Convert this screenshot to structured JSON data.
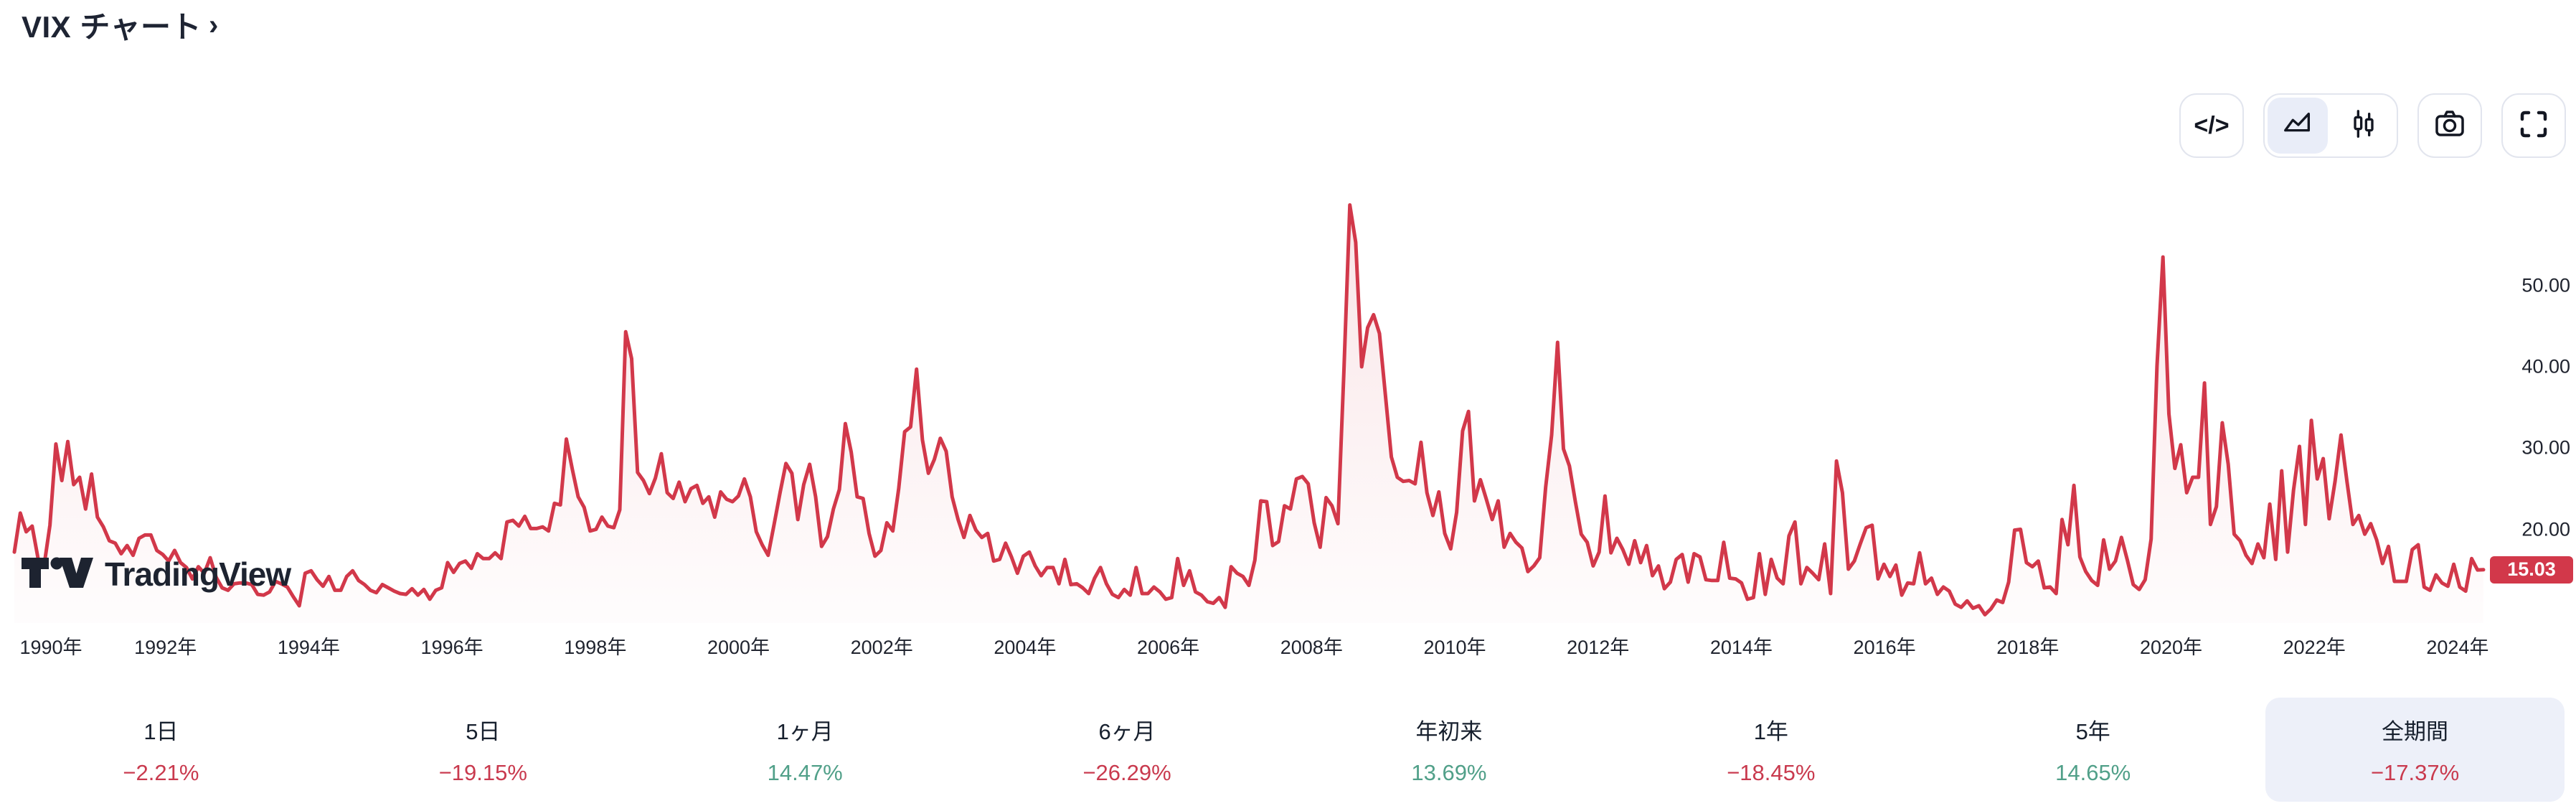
{
  "page": {
    "background": "#ffffff"
  },
  "header": {
    "title": "VIX チャート",
    "chevron": "›"
  },
  "toolbar": {
    "code_button": {
      "glyph": "</>"
    },
    "chart_type": {
      "options": [
        {
          "name": "area",
          "selected": true
        },
        {
          "name": "candles",
          "selected": false
        }
      ]
    },
    "screenshot_button": {
      "icon": "camera-icon"
    },
    "fullscreen_button": {
      "icon": "fullscreen-icon"
    }
  },
  "watermark": {
    "text": "TradingView"
  },
  "chart_data": {
    "type": "area",
    "title": "VIX",
    "frequency": "monthly",
    "x_start": {
      "year": 1990,
      "month": 1
    },
    "x_end": {
      "year": 2024,
      "month": 9
    },
    "line_color": "#d2384a",
    "fill_color_top": "rgba(210,56,74,0.16)",
    "fill_color_bottom": "rgba(210,56,74,0)",
    "ylim": [
      8,
      78
    ],
    "grid": false,
    "legend": false,
    "values": [
      17.2,
      22.0,
      19.7,
      20.4,
      16.4,
      15.5,
      20.5,
      30.5,
      26.0,
      30.8,
      25.5,
      26.4,
      22.5,
      26.8,
      21.5,
      20.3,
      18.6,
      18.3,
      17.0,
      18.0,
      16.8,
      18.9,
      19.3,
      19.3,
      17.4,
      16.9,
      16.1,
      17.4,
      15.9,
      15.3,
      13.9,
      15.4,
      14.6,
      16.5,
      14.1,
      12.8,
      12.5,
      13.3,
      13.4,
      13.4,
      13.2,
      12.0,
      11.9,
      12.3,
      13.6,
      13.3,
      12.9,
      11.7,
      10.6,
      14.6,
      14.9,
      13.8,
      13.0,
      14.2,
      12.5,
      12.5,
      14.2,
      14.9,
      13.7,
      13.2,
      12.5,
      12.2,
      13.2,
      12.8,
      12.4,
      12.1,
      12.0,
      12.7,
      11.9,
      12.6,
      11.4,
      12.5,
      12.8,
      15.9,
      14.7,
      15.8,
      16.1,
      15.2,
      17.0,
      16.4,
      16.4,
      17.1,
      16.4,
      20.9,
      21.1,
      20.4,
      21.6,
      20.1,
      20.1,
      20.3,
      19.8,
      23.2,
      23.0,
      31.1,
      27.4,
      24.0,
      22.7,
      19.8,
      20.0,
      21.5,
      20.4,
      20.2,
      22.4,
      44.3,
      41.0,
      27.0,
      26.0,
      24.4,
      26.3,
      29.3,
      24.5,
      23.8,
      25.8,
      23.4,
      25.0,
      25.4,
      23.2,
      24.0,
      21.5,
      24.6,
      23.7,
      23.4,
      24.1,
      26.2,
      24.0,
      19.7,
      18.1,
      16.8,
      20.6,
      24.5,
      28.1,
      26.9,
      21.2,
      25.5,
      28.0,
      24.0,
      17.9,
      19.1,
      22.5,
      24.9,
      33.0,
      29.5,
      24.0,
      23.8,
      19.5,
      16.7,
      17.4,
      20.8,
      19.8,
      25.0,
      32.0,
      32.6,
      39.7,
      31.0,
      26.9,
      28.6,
      31.2,
      29.6,
      24.0,
      21.2,
      19.0,
      21.7,
      19.9,
      19.0,
      19.5,
      16.1,
      16.3,
      18.3,
      16.6,
      14.6,
      16.7,
      17.2,
      15.5,
      14.3,
      15.3,
      15.3,
      13.3,
      16.3,
      13.2,
      13.3,
      12.8,
      12.1,
      14.0,
      15.3,
      13.3,
      12.0,
      11.6,
      12.6,
      11.9,
      15.3,
      12.1,
      12.1,
      12.9,
      12.3,
      11.4,
      11.6,
      16.4,
      13.1,
      14.9,
      12.3,
      11.9,
      11.1,
      10.9,
      11.6,
      10.4,
      15.4,
      14.6,
      14.2,
      13.1,
      16.2,
      23.5,
      23.4,
      18.0,
      18.5,
      22.9,
      22.5,
      26.2,
      26.5,
      25.6,
      20.8,
      17.8,
      23.9,
      22.9,
      20.7,
      39.4,
      59.9,
      55.3,
      40.0,
      44.8,
      46.4,
      44.1,
      36.5,
      28.9,
      26.4,
      25.9,
      26.0,
      25.6,
      30.7,
      24.5,
      21.7,
      24.6,
      19.5,
      17.6,
      22.1,
      32.1,
      34.5,
      23.5,
      26.1,
      23.7,
      21.2,
      23.5,
      17.8,
      19.5,
      18.4,
      17.7,
      14.8,
      15.5,
      16.5,
      25.2,
      31.6,
      43.0,
      29.9,
      27.8,
      23.4,
      19.4,
      18.4,
      15.5,
      17.2,
      24.1,
      17.1,
      18.9,
      17.5,
      15.7,
      18.6,
      15.9,
      18.0,
      14.3,
      15.5,
      12.7,
      13.5,
      16.3,
      16.9,
      13.5,
      17.0,
      16.6,
      13.8,
      13.7,
      13.7,
      18.4,
      14.0,
      13.9,
      13.4,
      11.4,
      11.6,
      17.0,
      12.0,
      16.3,
      14.0,
      13.3,
      19.2,
      20.9,
      13.3,
      15.3,
      14.6,
      13.8,
      18.2,
      12.1,
      28.4,
      24.5,
      15.1,
      16.1,
      18.2,
      20.2,
      20.5,
      13.9,
      15.7,
      14.2,
      15.6,
      11.9,
      13.4,
      13.3,
      17.1,
      13.3,
      14.0,
      12.0,
      12.9,
      12.4,
      10.8,
      10.4,
      11.2,
      10.3,
      10.6,
      9.5,
      10.2,
      11.3,
      11.0,
      13.5,
      19.9,
      20.0,
      15.9,
      15.4,
      16.1,
      12.8,
      12.9,
      12.1,
      21.2,
      18.1,
      25.4,
      16.6,
      14.8,
      13.7,
      13.1,
      18.7,
      15.1,
      16.1,
      19.0,
      16.2,
      13.2,
      12.6,
      13.8,
      18.8,
      40.1,
      53.5,
      34.2,
      27.5,
      30.4,
      24.5,
      26.4,
      26.4,
      38.0,
      20.6,
      22.8,
      33.1,
      28.0,
      19.4,
      18.6,
      16.8,
      15.8,
      18.2,
      16.5,
      23.1,
      16.3,
      27.2,
      17.2,
      24.8,
      30.2,
      20.6,
      33.4,
      26.2,
      28.7,
      21.3,
      25.9,
      31.6,
      25.9,
      20.6,
      21.7,
      19.4,
      20.7,
      18.7,
      15.8,
      17.9,
      13.6,
      13.6,
      13.6,
      17.5,
      18.1,
      12.9,
      12.5,
      14.4,
      13.4,
      13.0,
      15.7,
      12.9,
      12.4,
      16.4,
      15.0,
      15.03
    ],
    "y_axis": {
      "ticks": [
        {
          "label": "50.00",
          "value": 50
        },
        {
          "label": "40.00",
          "value": 40
        },
        {
          "label": "30.00",
          "value": 30
        },
        {
          "label": "20.00",
          "value": 20
        }
      ]
    },
    "x_axis": {
      "labels": [
        {
          "text": "1990年",
          "year": 1990
        },
        {
          "text": "1992年",
          "year": 1992
        },
        {
          "text": "1994年",
          "year": 1994
        },
        {
          "text": "1996年",
          "year": 1996
        },
        {
          "text": "1998年",
          "year": 1998
        },
        {
          "text": "2000年",
          "year": 2000
        },
        {
          "text": "2002年",
          "year": 2002
        },
        {
          "text": "2004年",
          "year": 2004
        },
        {
          "text": "2006年",
          "year": 2006
        },
        {
          "text": "2008年",
          "year": 2008
        },
        {
          "text": "2010年",
          "year": 2010
        },
        {
          "text": "2012年",
          "year": 2012
        },
        {
          "text": "2014年",
          "year": 2014
        },
        {
          "text": "2016年",
          "year": 2016
        },
        {
          "text": "2018年",
          "year": 2018
        },
        {
          "text": "2020年",
          "year": 2020
        },
        {
          "text": "2022年",
          "year": 2022
        },
        {
          "text": "2024年",
          "year": 2024
        }
      ]
    },
    "last_price": {
      "label": "15.03",
      "value": 15.03,
      "bg": "#d2384a",
      "text_color": "#ffffff"
    }
  },
  "stats": {
    "selected_index": 7,
    "up_color": "#51a089",
    "down_color": "#c93a4e",
    "items": [
      {
        "label": "1日",
        "value": "−2.21%",
        "direction": "down"
      },
      {
        "label": "5日",
        "value": "−19.15%",
        "direction": "down"
      },
      {
        "label": "1ヶ月",
        "value": "14.47%",
        "direction": "up"
      },
      {
        "label": "6ヶ月",
        "value": "−26.29%",
        "direction": "down"
      },
      {
        "label": "年初来",
        "value": "13.69%",
        "direction": "up"
      },
      {
        "label": "1年",
        "value": "−18.45%",
        "direction": "down"
      },
      {
        "label": "5年",
        "value": "14.65%",
        "direction": "up"
      },
      {
        "label": "全期間",
        "value": "−17.37%",
        "direction": "down"
      }
    ]
  }
}
